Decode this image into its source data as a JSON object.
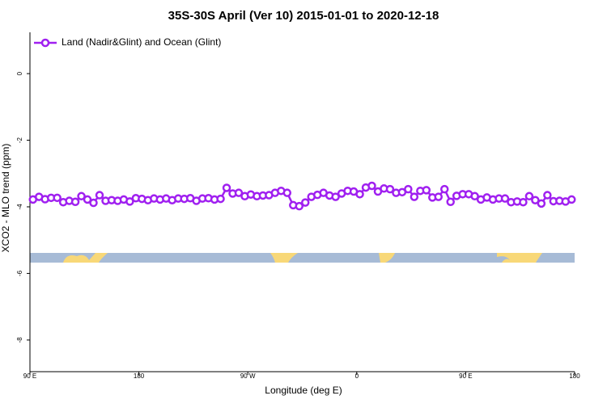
{
  "chart_data": {
    "type": "line",
    "title": "35S-30S April (Ver 10)   2015-01-01 to 2020-12-18",
    "xlabel": "Longitude (deg E)",
    "ylabel": "XCO2 - MLO trend (ppm)",
    "xlim": [
      90,
      540
    ],
    "xticks": [
      {
        "value": 90,
        "label": "90 E"
      },
      180,
      {
        "value": 270,
        "label": "90 W"
      },
      {
        "value": 360,
        "label": "0"
      },
      {
        "value": 450,
        "label": "90 E"
      },
      {
        "value": 540,
        "label": "180"
      }
    ],
    "ylim": [
      -8.95,
      1.24
    ],
    "yticks": [
      0,
      -2,
      -4,
      -6,
      -8
    ],
    "legend": "upper left",
    "series": [
      {
        "name": "Land (Nadir&Glint) and Ocean (Glint)",
        "color": "#a020f0",
        "x": [
          92.5,
          97.5,
          102.5,
          107.5,
          112.5,
          117.5,
          122.5,
          127.5,
          132.5,
          137.5,
          142.5,
          147.5,
          152.5,
          157.5,
          162.5,
          167.5,
          172.5,
          177.5,
          182.5,
          187.5,
          192.5,
          197.5,
          202.5,
          207.5,
          212.5,
          217.5,
          222.5,
          227.5,
          232.5,
          237.5,
          242.5,
          247.5,
          252.5,
          257.5,
          262.5,
          267.5,
          272.5,
          277.5,
          282.5,
          287.5,
          292.5,
          297.5,
          302.5,
          307.5,
          312.5,
          317.5,
          322.5,
          327.5,
          332.5,
          337.5,
          342.5,
          347.5,
          352.5,
          357.5,
          362.5,
          367.5,
          372.5,
          377.5,
          382.5,
          387.5,
          392.5,
          397.5,
          402.5,
          407.5,
          412.5,
          417.5,
          422.5,
          427.5,
          432.5,
          437.5,
          442.5,
          447.5,
          452.5,
          457.5,
          462.5,
          467.5,
          472.5,
          477.5,
          482.5,
          487.5,
          492.5,
          497.5,
          502.5,
          507.5,
          512.5,
          517.5,
          522.5,
          527.5,
          532.5,
          537.5
        ],
        "values": [
          -3.78,
          -3.7,
          -3.77,
          -3.73,
          -3.73,
          -3.86,
          -3.82,
          -3.85,
          -3.68,
          -3.78,
          -3.88,
          -3.65,
          -3.82,
          -3.8,
          -3.82,
          -3.78,
          -3.84,
          -3.74,
          -3.76,
          -3.8,
          -3.75,
          -3.78,
          -3.75,
          -3.8,
          -3.75,
          -3.76,
          -3.74,
          -3.82,
          -3.75,
          -3.74,
          -3.78,
          -3.76,
          -3.43,
          -3.6,
          -3.58,
          -3.68,
          -3.63,
          -3.68,
          -3.66,
          -3.65,
          -3.58,
          -3.52,
          -3.58,
          -3.95,
          -3.98,
          -3.87,
          -3.7,
          -3.64,
          -3.58,
          -3.66,
          -3.7,
          -3.6,
          -3.52,
          -3.54,
          -3.62,
          -3.42,
          -3.37,
          -3.54,
          -3.45,
          -3.47,
          -3.58,
          -3.56,
          -3.47,
          -3.7,
          -3.52,
          -3.5,
          -3.72,
          -3.7,
          -3.47,
          -3.85,
          -3.67,
          -3.62,
          -3.62,
          -3.68,
          -3.78,
          -3.72,
          -3.78,
          -3.75,
          -3.75,
          -3.86,
          -3.84,
          -3.86,
          -3.68,
          -3.8,
          -3.9,
          -3.65,
          -3.83,
          -3.82,
          -3.84,
          -3.78
        ]
      }
    ]
  }
}
